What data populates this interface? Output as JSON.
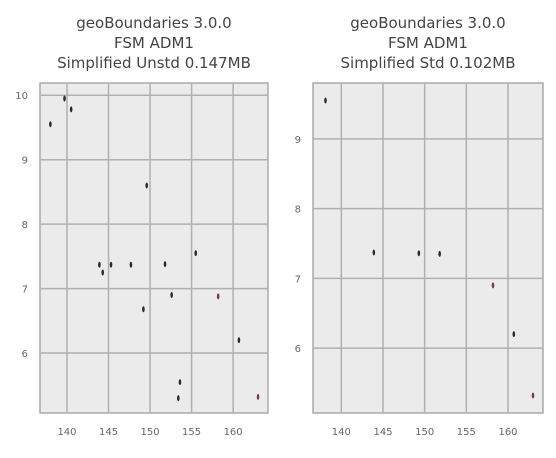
{
  "chart_data": [
    {
      "type": "scatter",
      "title": [
        "geoBoundaries 3.0.0",
        "FSM ADM1",
        "Simplified Unstd 0.147MB"
      ],
      "x": [
        138.0,
        139.7,
        140.5,
        149.6,
        143.9,
        144.3,
        145.3,
        147.7,
        151.8,
        155.5,
        152.6,
        149.2,
        158.2,
        160.7,
        153.6,
        153.4,
        163.0
      ],
      "y": [
        9.55,
        9.95,
        9.78,
        8.6,
        7.37,
        7.25,
        7.37,
        7.37,
        7.38,
        7.55,
        6.9,
        6.68,
        6.88,
        6.2,
        5.55,
        5.3,
        5.32
      ],
      "colors": [
        "#2b2b2b",
        "#2b2b2b",
        "#2b2b2b",
        "#2b2b2b",
        "#2b2b2b",
        "#2b2b2b",
        "#2b2b2b",
        "#2b2b2b",
        "#2b2b2b",
        "#2b2b2b",
        "#2b2b2b",
        "#2b2b2b",
        "#7a3c42",
        "#2b2b2b",
        "#2b2b2b",
        "#2b2b2b",
        "#7a3c42"
      ],
      "xlim": [
        136.75,
        164.2
      ],
      "ylim": [
        5.07,
        10.19
      ],
      "xticks": [
        140,
        145,
        150,
        155,
        160
      ],
      "yticks": [
        6,
        7,
        8,
        9,
        10
      ],
      "grid": true
    },
    {
      "type": "scatter",
      "title": [
        "geoBoundaries 3.0.0",
        "FSM ADM1",
        "Simplified Std 0.102MB"
      ],
      "x": [
        138.1,
        143.9,
        149.3,
        151.8,
        158.2,
        160.7,
        163.0
      ],
      "y": [
        9.55,
        7.37,
        7.36,
        7.35,
        6.9,
        6.2,
        5.32
      ],
      "colors": [
        "#2b2b2b",
        "#2b2b2b",
        "#2b2b2b",
        "#2b2b2b",
        "#7a3c42",
        "#2b2b2b",
        "#7a3c42"
      ],
      "xlim": [
        136.6,
        164.2
      ],
      "ylim": [
        5.07,
        9.8
      ],
      "xticks": [
        140,
        145,
        150,
        155,
        160
      ],
      "yticks": [
        6,
        7,
        8,
        9
      ],
      "grid": true
    }
  ]
}
